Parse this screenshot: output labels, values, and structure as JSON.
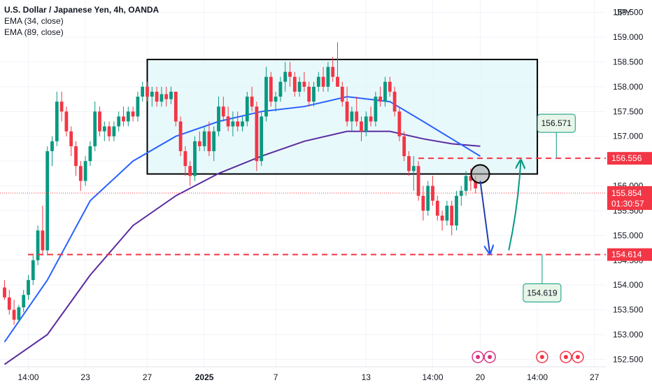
{
  "legend": {
    "title": "U.S. Dollar / Japanese Yen, 4h, OANDA",
    "ema_fast": "EMA (34, close)",
    "ema_slow": "EMA (89, close)"
  },
  "currency_label": "JPY",
  "colors": {
    "up": "#089981",
    "down": "#f23645",
    "ema_fast": "#2962ff",
    "ema_slow": "#5b2c9f",
    "level": "#f23645",
    "box_fill": "#e0f7fa",
    "callout_fill": "#e8f5e9",
    "callout_border": "#089981"
  },
  "chart_data": {
    "type": "candlestick",
    "y_range": [
      152.35,
      159.75
    ],
    "y_ticks": [
      "152.500",
      "153.000",
      "153.500",
      "154.000",
      "154.500",
      "155.000",
      "155.500",
      "156.000",
      "156.500",
      "157.000",
      "157.500",
      "158.000",
      "158.500",
      "159.000",
      "159.500"
    ],
    "x_ticks": [
      {
        "label": "14:00",
        "i": 5
      },
      {
        "label": "23",
        "i": 17
      },
      {
        "label": "27",
        "i": 30
      },
      {
        "label": "2025",
        "i": 42
      },
      {
        "label": "7",
        "i": 57
      },
      {
        "label": "13",
        "i": 76
      },
      {
        "label": "14:00",
        "i": 90
      },
      {
        "label": "20",
        "i": 100
      },
      {
        "label": "14:00",
        "i": 112
      },
      {
        "label": "27",
        "i": 124
      }
    ],
    "series_ohlc": [
      [
        153.95,
        154.1,
        153.7,
        153.75
      ],
      [
        153.75,
        153.9,
        153.4,
        153.5
      ],
      [
        153.5,
        153.7,
        153.2,
        153.3
      ],
      [
        153.3,
        153.6,
        153.25,
        153.55
      ],
      [
        153.55,
        153.9,
        153.45,
        153.8
      ],
      [
        153.8,
        154.2,
        153.7,
        154.1
      ],
      [
        154.1,
        154.6,
        154.0,
        154.5
      ],
      [
        154.5,
        155.2,
        154.4,
        155.1
      ],
      [
        155.1,
        155.6,
        154.6,
        154.7
      ],
      [
        154.7,
        156.8,
        154.6,
        156.7
      ],
      [
        156.7,
        157.0,
        156.4,
        156.9
      ],
      [
        156.9,
        157.9,
        156.8,
        157.7
      ],
      [
        157.7,
        157.9,
        157.3,
        157.5
      ],
      [
        157.5,
        157.6,
        157.0,
        157.1
      ],
      [
        157.1,
        157.2,
        156.6,
        156.8
      ],
      [
        156.8,
        156.9,
        156.2,
        156.4
      ],
      [
        156.4,
        156.5,
        155.9,
        156.1
      ],
      [
        156.1,
        156.6,
        156.0,
        156.5
      ],
      [
        156.5,
        156.9,
        156.4,
        156.8
      ],
      [
        156.8,
        157.7,
        156.7,
        157.5
      ],
      [
        157.5,
        157.6,
        157.0,
        157.1
      ],
      [
        157.1,
        157.3,
        156.9,
        157.2
      ],
      [
        157.2,
        157.3,
        156.9,
        157.0
      ],
      [
        157.0,
        157.3,
        156.9,
        157.2
      ],
      [
        157.2,
        157.5,
        157.1,
        157.4
      ],
      [
        157.4,
        157.6,
        157.2,
        157.3
      ],
      [
        157.3,
        157.6,
        157.2,
        157.5
      ],
      [
        157.5,
        157.6,
        157.3,
        157.4
      ],
      [
        157.4,
        157.9,
        157.3,
        157.8
      ],
      [
        157.8,
        158.1,
        157.7,
        158.0
      ],
      [
        158.0,
        158.1,
        157.7,
        157.8
      ],
      [
        157.8,
        158.0,
        157.6,
        157.9
      ],
      [
        157.9,
        158.0,
        157.6,
        157.7
      ],
      [
        157.7,
        158.0,
        157.6,
        157.85
      ],
      [
        157.85,
        158.0,
        157.6,
        157.75
      ],
      [
        157.75,
        158.0,
        157.65,
        157.9
      ],
      [
        157.9,
        157.9,
        157.2,
        157.3
      ],
      [
        157.3,
        157.4,
        156.6,
        156.7
      ],
      [
        156.7,
        156.8,
        156.2,
        156.4
      ],
      [
        156.4,
        156.5,
        156.0,
        156.2
      ],
      [
        156.2,
        157.0,
        156.1,
        156.9
      ],
      [
        156.9,
        157.1,
        156.7,
        156.8
      ],
      [
        156.8,
        157.2,
        156.7,
        157.1
      ],
      [
        157.1,
        157.3,
        156.6,
        156.7
      ],
      [
        156.7,
        157.2,
        156.5,
        157.1
      ],
      [
        157.1,
        157.8,
        157.0,
        157.6
      ],
      [
        157.6,
        157.8,
        157.3,
        157.4
      ],
      [
        157.4,
        157.6,
        157.1,
        157.2
      ],
      [
        157.2,
        157.5,
        157.0,
        157.3
      ],
      [
        157.3,
        157.5,
        157.1,
        157.2
      ],
      [
        157.2,
        157.4,
        157.1,
        157.3
      ],
      [
        157.3,
        157.9,
        157.2,
        157.8
      ],
      [
        157.8,
        158.0,
        157.5,
        157.6
      ],
      [
        157.6,
        157.7,
        156.3,
        156.5
      ],
      [
        156.5,
        157.5,
        156.4,
        157.4
      ],
      [
        157.4,
        158.4,
        157.3,
        158.2
      ],
      [
        158.2,
        158.3,
        157.6,
        157.7
      ],
      [
        157.7,
        157.9,
        157.5,
        157.8
      ],
      [
        157.8,
        158.2,
        157.7,
        158.1
      ],
      [
        158.1,
        158.5,
        157.9,
        158.3
      ],
      [
        158.3,
        158.5,
        158.0,
        158.2
      ],
      [
        158.2,
        158.3,
        157.8,
        157.9
      ],
      [
        157.9,
        158.2,
        157.8,
        158.1
      ],
      [
        158.1,
        158.3,
        157.9,
        158.0
      ],
      [
        158.0,
        158.1,
        157.6,
        157.7
      ],
      [
        157.7,
        158.1,
        157.6,
        158.0
      ],
      [
        158.0,
        158.3,
        157.9,
        158.2
      ],
      [
        158.2,
        158.4,
        157.9,
        158.0
      ],
      [
        158.0,
        158.5,
        157.9,
        158.4
      ],
      [
        158.4,
        158.6,
        158.1,
        158.2
      ],
      [
        158.2,
        158.9,
        158.1,
        158.0
      ],
      [
        158.0,
        158.1,
        157.6,
        157.7
      ],
      [
        157.7,
        158.0,
        157.2,
        157.3
      ],
      [
        157.3,
        157.6,
        157.1,
        157.5
      ],
      [
        157.5,
        157.8,
        157.2,
        157.3
      ],
      [
        157.3,
        157.4,
        156.9,
        157.1
      ],
      [
        157.1,
        157.5,
        157.0,
        157.4
      ],
      [
        157.4,
        157.6,
        157.2,
        157.3
      ],
      [
        157.3,
        157.9,
        157.2,
        157.8
      ],
      [
        157.8,
        158.0,
        157.6,
        157.7
      ],
      [
        157.7,
        158.2,
        157.6,
        158.1
      ],
      [
        158.1,
        158.2,
        157.8,
        157.9
      ],
      [
        157.9,
        158.0,
        157.4,
        157.5
      ],
      [
        157.5,
        157.6,
        156.9,
        157.0
      ],
      [
        157.0,
        157.1,
        156.5,
        156.6
      ],
      [
        156.6,
        156.7,
        156.2,
        156.3
      ],
      [
        156.3,
        156.6,
        155.9,
        156.4
      ],
      [
        156.4,
        156.5,
        155.7,
        155.8
      ],
      [
        155.8,
        156.0,
        155.3,
        155.5
      ],
      [
        155.5,
        156.1,
        155.4,
        156.0
      ],
      [
        156.0,
        156.2,
        155.6,
        155.7
      ],
      [
        155.7,
        155.8,
        155.3,
        155.4
      ],
      [
        155.4,
        155.5,
        155.1,
        155.3
      ],
      [
        155.3,
        155.7,
        155.2,
        155.6
      ],
      [
        155.6,
        155.7,
        155.0,
        155.2
      ],
      [
        155.2,
        155.9,
        155.1,
        155.8
      ],
      [
        155.8,
        156.0,
        155.6,
        155.9
      ],
      [
        155.9,
        156.3,
        155.8,
        156.2
      ],
      [
        156.2,
        156.35,
        155.9,
        156.1
      ],
      [
        156.1,
        156.2,
        155.85,
        155.95
      ]
    ],
    "ema_34": [
      [
        0,
        152.85
      ],
      [
        9,
        154.1
      ],
      [
        18,
        155.7
      ],
      [
        27,
        156.5
      ],
      [
        36,
        157.0
      ],
      [
        45,
        157.3
      ],
      [
        54,
        157.5
      ],
      [
        63,
        157.6
      ],
      [
        72,
        157.8
      ],
      [
        81,
        157.7
      ],
      [
        88,
        157.3
      ],
      [
        94,
        156.95
      ],
      [
        100,
        156.6
      ]
    ],
    "ema_89": [
      [
        0,
        152.4
      ],
      [
        9,
        153.0
      ],
      [
        18,
        154.2
      ],
      [
        27,
        155.2
      ],
      [
        36,
        155.8
      ],
      [
        45,
        156.25
      ],
      [
        54,
        156.6
      ],
      [
        63,
        156.9
      ],
      [
        72,
        157.1
      ],
      [
        81,
        157.1
      ],
      [
        88,
        156.95
      ],
      [
        94,
        156.85
      ],
      [
        100,
        156.8
      ]
    ],
    "range_box": {
      "x_start": 30,
      "x_end": 112,
      "y_low": 156.24,
      "y_high": 158.55
    },
    "levels": [
      {
        "name": "resistance",
        "value": 156.556,
        "label": "156.556"
      },
      {
        "name": "support",
        "value": 154.614,
        "label": "154.614"
      }
    ],
    "last_price": {
      "value": 155.854,
      "label": "155.854",
      "countdown": "01:30:57"
    },
    "callouts": [
      {
        "label": "156.571",
        "anchor_x": 116,
        "anchor_y": 156.571
      },
      {
        "label": "154.619",
        "anchor_x": 113,
        "anchor_y": 154.619
      }
    ],
    "marker_circle": {
      "x": 100,
      "y": 156.24
    }
  }
}
